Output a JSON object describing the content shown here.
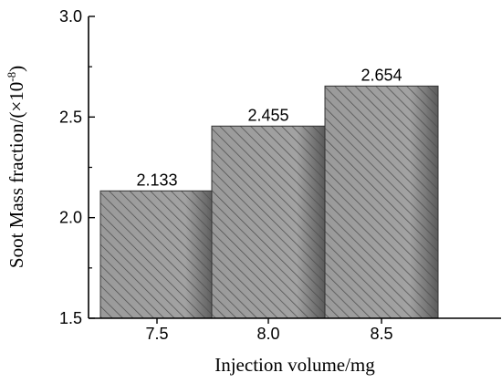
{
  "chart_data": {
    "type": "bar",
    "categories": [
      "7.5",
      "8.0",
      "8.5"
    ],
    "values": [
      2.133,
      2.455,
      2.654
    ],
    "data_labels": [
      "2.133",
      "2.455",
      "2.654"
    ],
    "xlabel": "Injection volume/mg",
    "ylabel_main": "Soot Mass fraction/(×10",
    "ylabel_sup": "-8",
    "ylabel_close": ")",
    "ylim": [
      1.5,
      3.0
    ],
    "yticks": [
      1.5,
      2.0,
      2.5,
      3.0
    ],
    "ytick_labels": [
      "1.5",
      "2.0",
      "2.5",
      "3.0"
    ],
    "grid": false,
    "bar_fill": "#a0a0a0",
    "bar_hatch": "#5a5a5a",
    "bar_edge": "#333333"
  }
}
